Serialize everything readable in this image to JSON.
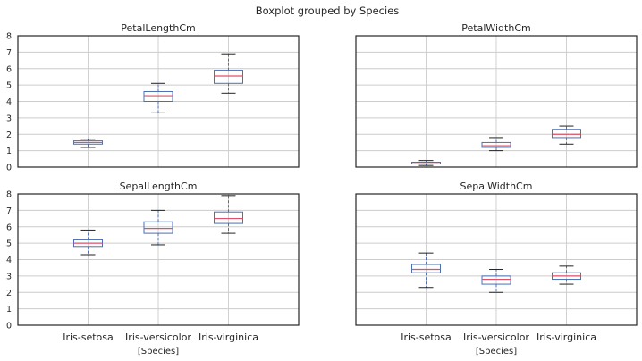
{
  "chart_data": {
    "type": "boxplot",
    "suptitle": "Boxplot grouped by Species",
    "categories": [
      "Iris-setosa",
      "Iris-versicolor",
      "Iris-virginica"
    ],
    "xlabel": "[Species]",
    "ylim": [
      0,
      8
    ],
    "yticks": [
      0,
      1,
      2,
      3,
      4,
      5,
      6,
      7,
      8
    ],
    "grid": true,
    "sharey": true,
    "colors": {
      "box": "#4a6fb5",
      "median": "#e0506a",
      "cap": "#222222",
      "grid": "#cccccc"
    },
    "panels": [
      {
        "title": "PetalLengthCm",
        "boxes": [
          {
            "category": "Iris-setosa",
            "min": 1.2,
            "q1": 1.4,
            "median": 1.5,
            "q3": 1.6,
            "max": 1.7
          },
          {
            "category": "Iris-versicolor",
            "min": 3.3,
            "q1": 4.0,
            "median": 4.35,
            "q3": 4.6,
            "max": 5.1
          },
          {
            "category": "Iris-virginica",
            "min": 4.5,
            "q1": 5.1,
            "median": 5.55,
            "q3": 5.9,
            "max": 6.9
          }
        ]
      },
      {
        "title": "PetalWidthCm",
        "boxes": [
          {
            "category": "Iris-setosa",
            "min": 0.1,
            "q1": 0.2,
            "median": 0.2,
            "q3": 0.3,
            "max": 0.4
          },
          {
            "category": "Iris-versicolor",
            "min": 1.0,
            "q1": 1.2,
            "median": 1.3,
            "q3": 1.5,
            "max": 1.8
          },
          {
            "category": "Iris-virginica",
            "min": 1.4,
            "q1": 1.8,
            "median": 2.0,
            "q3": 2.3,
            "max": 2.5
          }
        ]
      },
      {
        "title": "SepalLengthCm",
        "boxes": [
          {
            "category": "Iris-setosa",
            "min": 4.3,
            "q1": 4.8,
            "median": 5.0,
            "q3": 5.2,
            "max": 5.8
          },
          {
            "category": "Iris-versicolor",
            "min": 4.9,
            "q1": 5.6,
            "median": 5.9,
            "q3": 6.3,
            "max": 7.0
          },
          {
            "category": "Iris-virginica",
            "min": 5.6,
            "q1": 6.2,
            "median": 6.5,
            "q3": 6.9,
            "max": 7.9
          }
        ]
      },
      {
        "title": "SepalWidthCm",
        "boxes": [
          {
            "category": "Iris-setosa",
            "min": 2.3,
            "q1": 3.2,
            "median": 3.4,
            "q3": 3.7,
            "max": 4.4
          },
          {
            "category": "Iris-versicolor",
            "min": 2.0,
            "q1": 2.5,
            "median": 2.8,
            "q3": 3.0,
            "max": 3.4
          },
          {
            "category": "Iris-virginica",
            "min": 2.5,
            "q1": 2.8,
            "median": 3.0,
            "q3": 3.2,
            "max": 3.6
          }
        ]
      }
    ]
  }
}
